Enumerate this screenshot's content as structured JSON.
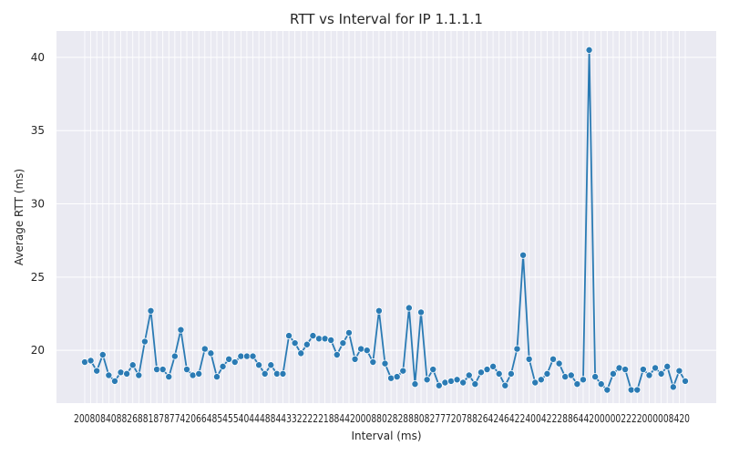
{
  "chart_data": {
    "type": "line",
    "title": "RTT vs Interval for IP 1.1.1.1",
    "xlabel": "Interval (ms)",
    "ylabel": "Average RTT (ms)",
    "ylim": [
      16.4,
      41.8
    ],
    "yticks": [
      20,
      25,
      30,
      35,
      40
    ],
    "grid": true,
    "marker": "circle",
    "line_color": "#2b7bb4",
    "x_tick_text": "20080840882688187877420664854554044488443322222188442000880282888082777207882642464224004222886442000002222000008420",
    "series": [
      {
        "values": [
          19.2,
          19.3,
          18.6,
          19.7,
          18.3,
          17.9,
          18.5,
          18.4,
          19.0,
          18.3,
          20.6,
          22.7,
          18.7,
          18.7,
          18.2,
          19.6,
          21.4,
          18.7,
          18.3,
          18.4,
          20.1,
          19.8,
          18.2,
          18.9,
          19.4,
          19.2,
          19.6,
          19.6,
          19.6,
          19.0,
          18.4,
          19.0,
          18.4,
          18.4,
          21.0,
          20.5,
          19.8,
          20.4,
          21.0,
          20.8,
          20.8,
          20.7,
          19.7,
          20.5,
          21.2,
          19.4,
          20.1,
          20.0,
          19.2,
          22.7,
          19.1,
          18.1,
          18.2,
          18.6,
          22.9,
          17.7,
          22.6,
          18.0,
          18.7,
          17.6,
          17.8,
          17.9,
          18.0,
          17.8,
          18.3,
          17.7,
          18.5,
          18.7,
          18.9,
          18.4,
          17.6,
          18.4,
          20.1,
          26.5,
          19.4,
          17.8,
          18.0,
          18.4,
          19.4,
          19.1,
          18.2,
          18.3,
          17.7,
          18.0,
          40.5,
          18.2,
          17.7,
          17.3,
          18.4,
          18.8,
          18.7,
          17.3,
          17.3,
          18.7,
          18.3,
          18.8,
          18.4,
          18.9,
          17.5,
          18.6,
          17.9
        ]
      }
    ]
  }
}
